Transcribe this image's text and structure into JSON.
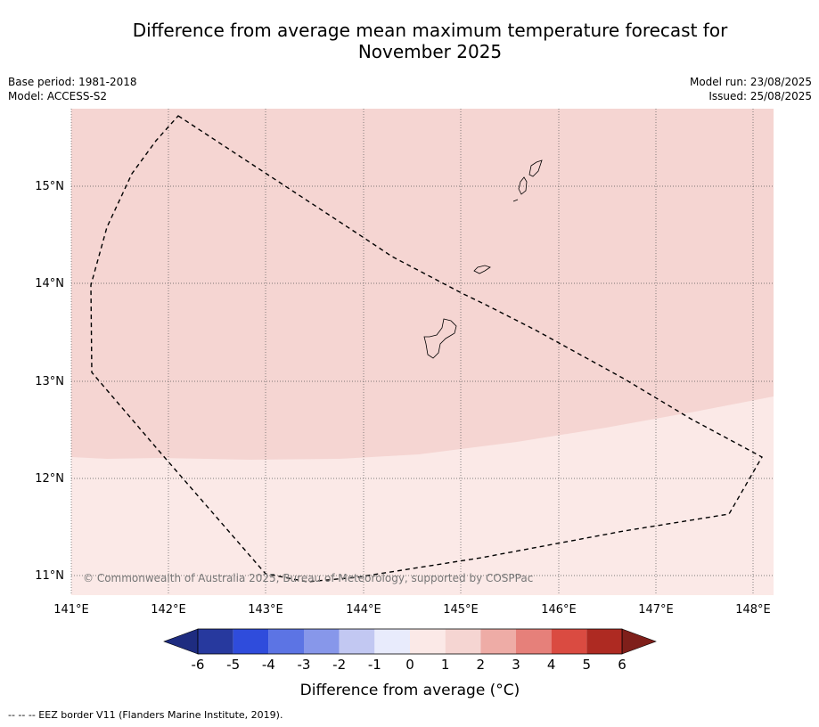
{
  "title_line1": "Difference from average mean maximum temperature forecast for",
  "title_line2": "November 2025",
  "meta_left": {
    "base_period": "Base period: 1981-2018",
    "model": "Model: ACCESS-S2"
  },
  "meta_right": {
    "model_run": "Model run: 23/08/2025",
    "issued": "Issued: 25/08/2025"
  },
  "map": {
    "lon_labels": [
      "141°E",
      "142°E",
      "143°E",
      "144°E",
      "145°E",
      "146°E",
      "147°E",
      "148°E"
    ],
    "lat_labels": [
      "15°N",
      "14°N",
      "13°N",
      "12°N",
      "11°N"
    ],
    "copyright": "© Commonwealth of Australia 2025, Bureau of Meteorology, supported by COSPPac",
    "fill_colors": {
      "category_0_to_1": "#fbe9e7",
      "category_1_to_2": "#f5d5d2"
    }
  },
  "colorbar": {
    "ticks": [
      "-6",
      "-5",
      "-4",
      "-3",
      "-2",
      "-1",
      "0",
      "1",
      "2",
      "3",
      "4",
      "5",
      "6"
    ],
    "colors": [
      "#27399e",
      "#2f4cdc",
      "#5c74e4",
      "#8797ea",
      "#c2c8f2",
      "#e8ebfc",
      "#fbe9e7",
      "#f5d5d2",
      "#eeaca6",
      "#e6807a",
      "#da4b41",
      "#ae2a22"
    ],
    "under_color": "#1e2c80",
    "over_color": "#7f1f1a",
    "label": "Difference from average (°C)"
  },
  "footer": "--  --  -- EEZ border V11 (Flanders Marine Institute, 2019)."
}
